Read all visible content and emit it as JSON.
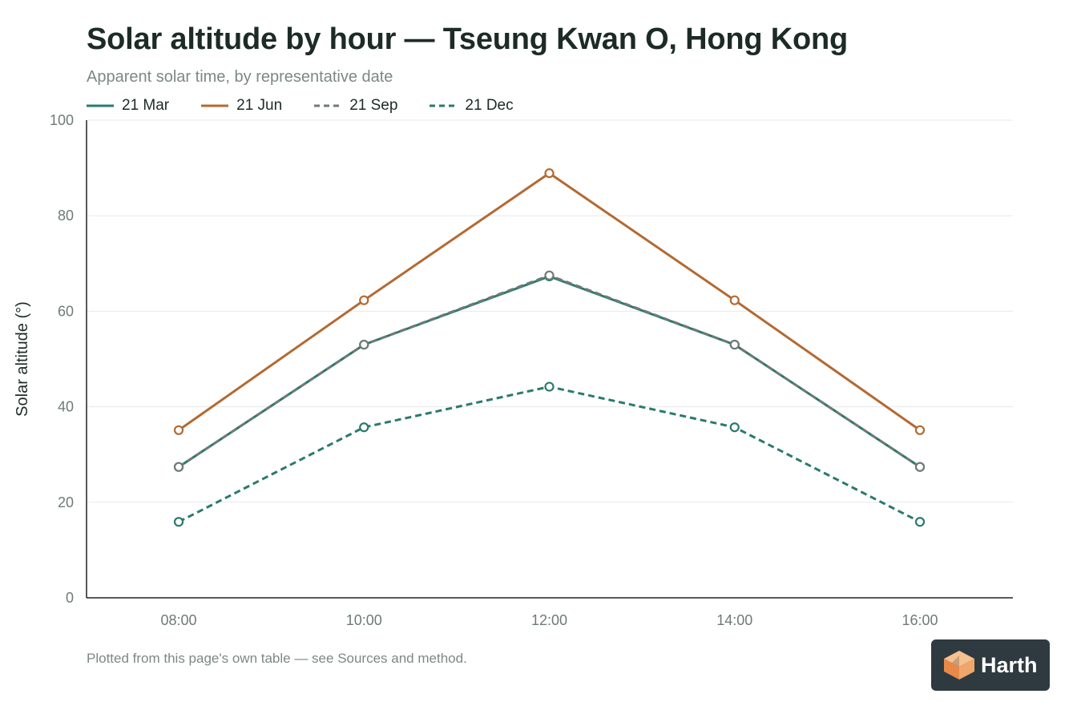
{
  "title": "Solar altitude by hour — Tseung Kwan O, Hong Kong",
  "subtitle": "Apparent solar time, by representative date",
  "footnote": "Plotted from this page's own table — see Sources and method.",
  "logo": {
    "text": "Harth",
    "accent": "#f0a56b",
    "background": "#2f3a40"
  },
  "colors": {
    "grid": "#e7e9e8",
    "axis": "#222222",
    "tick_text": "#6f7a76"
  },
  "chart_data": {
    "type": "line",
    "title": "Solar altitude by hour — Tseung Kwan O, Hong Kong",
    "subtitle": "Apparent solar time, by representative date",
    "xlabel": "",
    "ylabel": "Solar altitude (°)",
    "categories": [
      "08:00",
      "10:00",
      "12:00",
      "14:00",
      "16:00"
    ],
    "ylim": [
      0,
      100
    ],
    "yticks": [
      0,
      20,
      40,
      60,
      80,
      100
    ],
    "grid": true,
    "legend": "top-left",
    "series": [
      {
        "name": "21 Mar",
        "values": [
          27.4,
          53.0,
          67.3,
          53.0,
          27.4
        ],
        "color": "#2a7a6d",
        "dashed": false
      },
      {
        "name": "21 Jun",
        "values": [
          35.1,
          62.3,
          88.9,
          62.3,
          35.1
        ],
        "color": "#b36a32",
        "dashed": false
      },
      {
        "name": "21 Sep",
        "values": [
          27.4,
          53.0,
          67.5,
          53.0,
          27.4
        ],
        "color": "#6f7a76",
        "dashed": true
      },
      {
        "name": "21 Dec",
        "values": [
          15.9,
          35.7,
          44.2,
          35.7,
          15.9
        ],
        "color": "#2a7a6d",
        "dashed": true
      }
    ]
  }
}
